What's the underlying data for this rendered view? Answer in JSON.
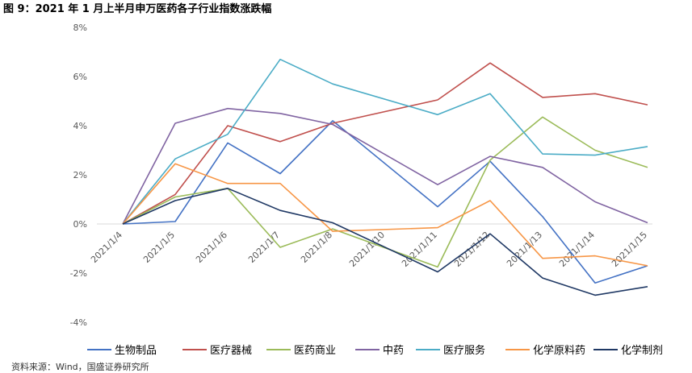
{
  "figure_title": "图 9：2021 年 1 月上半月申万医药各子行业指数涨跌幅",
  "source_note": "资料来源：Wind，国盛证券研究所",
  "chart_data": {
    "type": "line",
    "title": "",
    "xlabel": "",
    "ylabel": "",
    "x": [
      "2021/1/4",
      "2021/1/5",
      "2021/1/6",
      "2021/1/7",
      "2021/1/8",
      "2021/1/10",
      "2021/1/11",
      "2021/1/12",
      "2021/1/13",
      "2021/1/14",
      "2021/1/15"
    ],
    "ylim": [
      -4,
      8
    ],
    "yticks": [
      8,
      6,
      4,
      2,
      0,
      -2,
      -4
    ],
    "ytick_labels": [
      "8%",
      "6%",
      "4%",
      "2%",
      "0%",
      "-2%",
      "-4%"
    ],
    "grid": false,
    "legend_position": "bottom",
    "series": [
      {
        "name": "生物制品",
        "color": "#4472C4",
        "values": [
          0.0,
          0.1,
          3.3,
          2.05,
          4.2,
          null,
          0.7,
          2.55,
          0.3,
          -2.4,
          -1.7
        ]
      },
      {
        "name": "医疗器械",
        "color": "#C0504D",
        "values": [
          0.0,
          1.2,
          4.0,
          3.35,
          4.1,
          null,
          5.05,
          6.55,
          5.15,
          5.3,
          4.85
        ]
      },
      {
        "name": "医药商业",
        "color": "#9BBB59",
        "values": [
          0.0,
          1.1,
          1.45,
          -0.95,
          -0.2,
          null,
          -1.75,
          2.6,
          4.35,
          3.0,
          2.3
        ]
      },
      {
        "name": "中药",
        "color": "#8064A2",
        "values": [
          0.0,
          4.1,
          4.7,
          4.5,
          4.05,
          null,
          1.6,
          2.75,
          2.3,
          0.9,
          0.05
        ]
      },
      {
        "name": "医疗服务",
        "color": "#4BACC6",
        "values": [
          0.0,
          2.65,
          3.65,
          6.7,
          5.7,
          null,
          4.45,
          5.3,
          2.85,
          2.8,
          3.15
        ]
      },
      {
        "name": "化学原料药",
        "color": "#F79646",
        "values": [
          0.0,
          2.45,
          1.65,
          1.65,
          -0.3,
          null,
          -0.15,
          0.95,
          -1.4,
          -1.3,
          -1.7
        ]
      },
      {
        "name": "化学制剂",
        "color": "#1F3864",
        "values": [
          0.0,
          0.95,
          1.45,
          0.55,
          0.05,
          null,
          -1.95,
          -0.4,
          -2.2,
          -2.9,
          -2.55
        ]
      }
    ]
  }
}
